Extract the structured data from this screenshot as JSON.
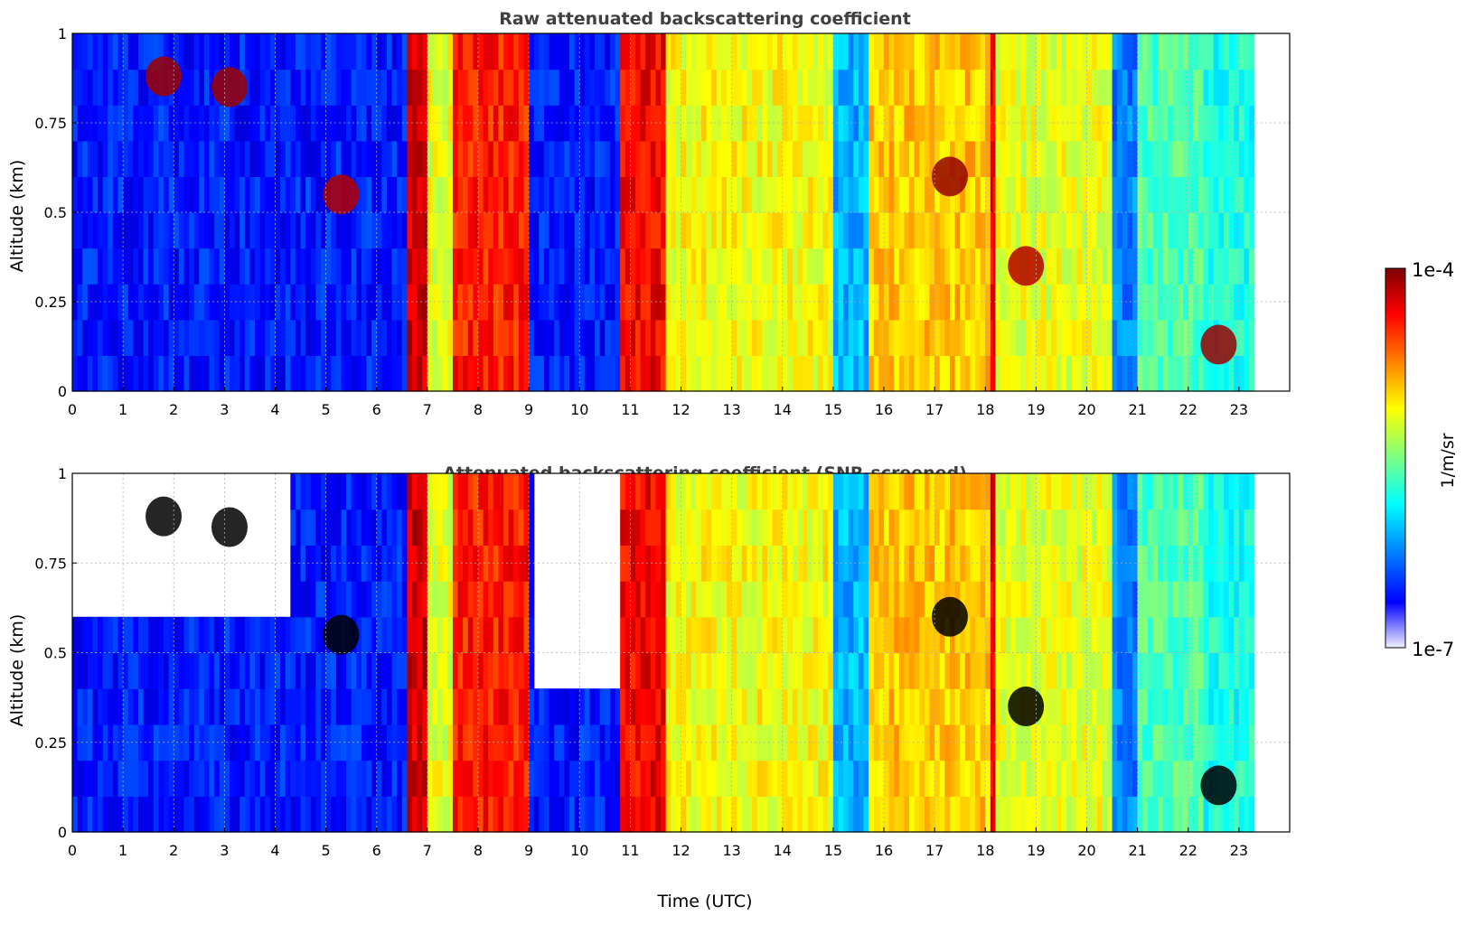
{
  "chart_data": [
    {
      "type": "heatmap",
      "title": "Raw attenuated backscattering coefficient",
      "xlabel": "",
      "ylabel": "Altitude (km)",
      "xlim": [
        0,
        24
      ],
      "ylim": [
        0,
        1
      ],
      "xticks": [
        "0",
        "1",
        "2",
        "3",
        "4",
        "5",
        "6",
        "7",
        "8",
        "9",
        "10",
        "11",
        "12",
        "13",
        "14",
        "15",
        "16",
        "17",
        "18",
        "19",
        "20",
        "21",
        "22",
        "23"
      ],
      "yticks": [
        "0",
        "0.25",
        "0.5",
        "0.75",
        "1"
      ],
      "grid": true,
      "colormap": "jet",
      "screened": false,
      "bands": [
        {
          "x": [
            0,
            6.6
          ],
          "level": 0.15,
          "note": "blue background, noisy aloft"
        },
        {
          "x": [
            6.6,
            7.0
          ],
          "level": 0.92
        },
        {
          "x": [
            7.0,
            7.5
          ],
          "level": 0.6
        },
        {
          "x": [
            7.5,
            9.0
          ],
          "level": 0.85
        },
        {
          "x": [
            9.0,
            10.8
          ],
          "level": 0.15
        },
        {
          "x": [
            10.8,
            11.7
          ],
          "level": 0.88
        },
        {
          "x": [
            11.7,
            15.0
          ],
          "level": 0.62
        },
        {
          "x": [
            15.0,
            15.7
          ],
          "level": 0.3
        },
        {
          "x": [
            15.7,
            18.1
          ],
          "level": 0.68
        },
        {
          "x": [
            18.1,
            18.2
          ],
          "level": 0.9
        },
        {
          "x": [
            18.2,
            20.5
          ],
          "level": 0.6
        },
        {
          "x": [
            20.5,
            21.0
          ],
          "level": 0.25
        },
        {
          "x": [
            21.0,
            22.3
          ],
          "level": 0.45
        },
        {
          "x": [
            22.3,
            23.3
          ],
          "level": 0.4
        }
      ],
      "features": [
        {
          "t": 1.8,
          "alt": 0.88,
          "level": 0.97
        },
        {
          "t": 3.1,
          "alt": 0.85,
          "level": 0.97
        },
        {
          "t": 5.3,
          "alt": 0.55,
          "level": 0.95
        },
        {
          "t": 17.3,
          "alt": 0.6,
          "level": 0.98
        },
        {
          "t": 18.8,
          "alt": 0.35,
          "level": 0.95
        },
        {
          "t": 22.6,
          "alt": 0.13,
          "level": 0.97
        }
      ]
    },
    {
      "type": "heatmap",
      "title": "Attenuated backscattering coefficient (SNR-screened)",
      "xlabel": "Time (UTC)",
      "ylabel": "Altitude (km)",
      "xlim": [
        0,
        24
      ],
      "ylim": [
        0,
        1
      ],
      "xticks": [
        "0",
        "1",
        "2",
        "3",
        "4",
        "5",
        "6",
        "7",
        "8",
        "9",
        "10",
        "11",
        "12",
        "13",
        "14",
        "15",
        "16",
        "17",
        "18",
        "19",
        "20",
        "21",
        "22",
        "23"
      ],
      "yticks": [
        "0",
        "0.25",
        "0.5",
        "0.75",
        "1"
      ],
      "grid": true,
      "colormap": "jet",
      "screened": true,
      "bands": [
        {
          "x": [
            0,
            6.6
          ],
          "level": 0.15
        },
        {
          "x": [
            6.6,
            7.0
          ],
          "level": 0.92
        },
        {
          "x": [
            7.0,
            7.5
          ],
          "level": 0.6
        },
        {
          "x": [
            7.5,
            9.0
          ],
          "level": 0.85
        },
        {
          "x": [
            9.0,
            10.8
          ],
          "level": 0.15
        },
        {
          "x": [
            10.8,
            11.7
          ],
          "level": 0.88
        },
        {
          "x": [
            11.7,
            15.0
          ],
          "level": 0.62
        },
        {
          "x": [
            15.0,
            15.7
          ],
          "level": 0.3
        },
        {
          "x": [
            15.7,
            18.1
          ],
          "level": 0.68
        },
        {
          "x": [
            18.1,
            18.2
          ],
          "level": 0.9
        },
        {
          "x": [
            18.2,
            20.5
          ],
          "level": 0.6
        },
        {
          "x": [
            20.5,
            21.0
          ],
          "level": 0.25
        },
        {
          "x": [
            21.0,
            22.3
          ],
          "level": 0.45
        },
        {
          "x": [
            22.3,
            23.3
          ],
          "level": 0.4
        }
      ],
      "features": [
        {
          "t": 1.8,
          "alt": 0.88,
          "level": 1.0
        },
        {
          "t": 3.1,
          "alt": 0.85,
          "level": 1.0
        },
        {
          "t": 5.3,
          "alt": 0.55,
          "level": 1.0
        },
        {
          "t": 17.3,
          "alt": 0.6,
          "level": 1.0
        },
        {
          "t": 18.8,
          "alt": 0.35,
          "level": 1.0
        },
        {
          "t": 22.6,
          "alt": 0.13,
          "level": 1.0
        }
      ]
    }
  ],
  "colorbar": {
    "label": "1/m/sr",
    "max_label": "1e-4",
    "min_label": "1e-7",
    "colors": [
      "#7f0000",
      "#ff0000",
      "#ffff00",
      "#00ffff",
      "#0000ff",
      "#ffffff"
    ]
  }
}
